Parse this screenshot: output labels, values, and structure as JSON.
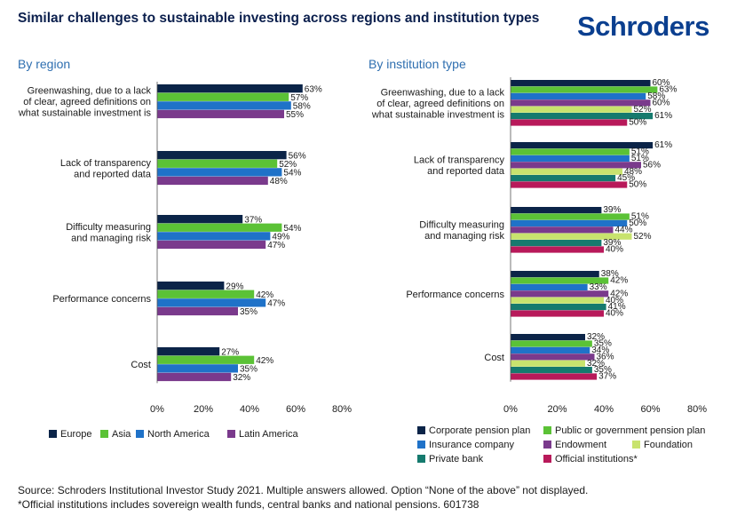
{
  "title": "Similar challenges to sustainable investing across regions and institution types",
  "brand": "Schroders",
  "colors": {
    "navy": "#0b2448",
    "green": "#5bc236",
    "blue": "#1f72c8",
    "purple": "#7a3a8c",
    "lightgreen": "#c8e36e",
    "teal": "#157a6e",
    "crimson": "#b8195a"
  },
  "footer": {
    "line1": "Source: Schroders Institutional Investor Study 2021. Multiple answers allowed. Option “None of the above” not displayed.",
    "line2": "*Official institutions includes sovereign wealth funds, central banks and national pensions. 601738"
  },
  "chart_data": [
    {
      "type": "bar",
      "title": "By region",
      "orientation": "horizontal",
      "categories": [
        "Greenwashing, due to a lack of clear, agreed definitions on what sustainable investment is",
        "Lack of transparency and reported data",
        "Difficulty measuring and managing risk",
        "Performance concerns",
        "Cost"
      ],
      "category_lines": [
        [
          "Greenwashing, due to a lack",
          "of clear, agreed definitions on",
          "what sustainable investment is"
        ],
        [
          "Lack of transparency",
          "and reported data"
        ],
        [
          "Difficulty measuring",
          "and managing risk"
        ],
        [
          "Performance concerns"
        ],
        [
          "Cost"
        ]
      ],
      "series": [
        {
          "name": "Europe",
          "color": "#0b2448",
          "values": [
            63,
            56,
            37,
            29,
            27
          ]
        },
        {
          "name": "Asia",
          "color": "#5bc236",
          "values": [
            57,
            52,
            54,
            42,
            42
          ]
        },
        {
          "name": "North America",
          "color": "#1f72c8",
          "values": [
            58,
            54,
            49,
            47,
            35
          ]
        },
        {
          "name": "Latin America",
          "color": "#7a3a8c",
          "values": [
            55,
            48,
            47,
            35,
            32
          ]
        }
      ],
      "xlim": [
        0,
        80
      ],
      "xticks": [
        "0%",
        "20%",
        "40%",
        "60%",
        "80%"
      ],
      "grid": false,
      "legend_placement": "bottom"
    },
    {
      "type": "bar",
      "title": "By institution type",
      "orientation": "horizontal",
      "categories": [
        "Greenwashing, due to a lack of clear, agreed definitions on what sustainable investment is",
        "Lack of transparency and reported data",
        "Difficulty measuring and managing risk",
        "Performance concerns",
        "Cost"
      ],
      "category_lines": [
        [
          "Greenwashing, due to a lack",
          "of clear, agreed definitions on",
          "what sustainable investment is"
        ],
        [
          "Lack of transparency",
          "and reported data"
        ],
        [
          "Difficulty measuring",
          "and managing risk"
        ],
        [
          "Performance concerns"
        ],
        [
          "Cost"
        ]
      ],
      "series": [
        {
          "name": "Corporate pension plan",
          "color": "#0b2448",
          "values": [
            60,
            61,
            39,
            38,
            32
          ]
        },
        {
          "name": "Public or government pension plan",
          "color": "#5bc236",
          "values": [
            63,
            51,
            51,
            42,
            35
          ]
        },
        {
          "name": "Insurance company",
          "color": "#1f72c8",
          "values": [
            58,
            51,
            50,
            33,
            34
          ]
        },
        {
          "name": "Endowment",
          "color": "#7a3a8c",
          "values": [
            60,
            56,
            44,
            42,
            36
          ]
        },
        {
          "name": "Foundation",
          "color": "#c8e36e",
          "values": [
            52,
            48,
            52,
            40,
            32
          ]
        },
        {
          "name": "Private bank",
          "color": "#157a6e",
          "values": [
            61,
            45,
            39,
            41,
            35
          ]
        },
        {
          "name": "Official institutions*",
          "color": "#b8195a",
          "values": [
            50,
            50,
            40,
            40,
            37
          ]
        }
      ],
      "xlim": [
        0,
        80
      ],
      "xticks": [
        "0%",
        "20%",
        "40%",
        "60%",
        "80%"
      ],
      "grid": false,
      "legend_placement": "bottom"
    }
  ]
}
